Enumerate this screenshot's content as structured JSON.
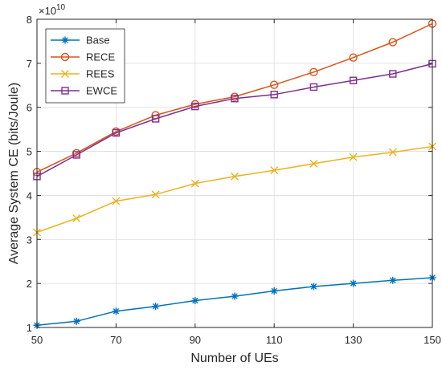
{
  "chart_data": {
    "type": "line",
    "title": "",
    "xlabel": "Number of UEs",
    "ylabel": "Average System CE (bits/Joule)",
    "y_exponent_label": "×10",
    "y_exponent_value": "10",
    "xlim": [
      50,
      150
    ],
    "ylim": [
      1,
      8
    ],
    "x_ticks": [
      "50",
      "70",
      "90",
      "110",
      "130",
      "150"
    ],
    "y_ticks": [
      "1",
      "2",
      "3",
      "4",
      "5",
      "6",
      "7",
      "8"
    ],
    "grid": true,
    "legend_position": "top-left",
    "x": [
      50,
      60,
      70,
      80,
      90,
      100,
      110,
      120,
      130,
      140,
      150
    ],
    "series": [
      {
        "name": "Base",
        "color": "#0072BD",
        "marker": "asterisk",
        "values": [
          1.05,
          1.14,
          1.37,
          1.48,
          1.61,
          1.71,
          1.83,
          1.93,
          2.0,
          2.07,
          2.13
        ]
      },
      {
        "name": "RECE",
        "color": "#D95319",
        "marker": "circle",
        "values": [
          4.53,
          4.96,
          5.45,
          5.82,
          6.07,
          6.24,
          6.51,
          6.8,
          7.13,
          7.48,
          7.9
        ]
      },
      {
        "name": "REES",
        "color": "#EDB120",
        "marker": "x",
        "values": [
          3.16,
          3.48,
          3.87,
          4.02,
          4.27,
          4.43,
          4.57,
          4.72,
          4.87,
          4.98,
          5.11
        ]
      },
      {
        "name": "EWCE",
        "color": "#7E2F8E",
        "marker": "square",
        "values": [
          4.43,
          4.92,
          5.42,
          5.74,
          6.02,
          6.2,
          6.29,
          6.46,
          6.61,
          6.76,
          6.99
        ]
      }
    ]
  }
}
